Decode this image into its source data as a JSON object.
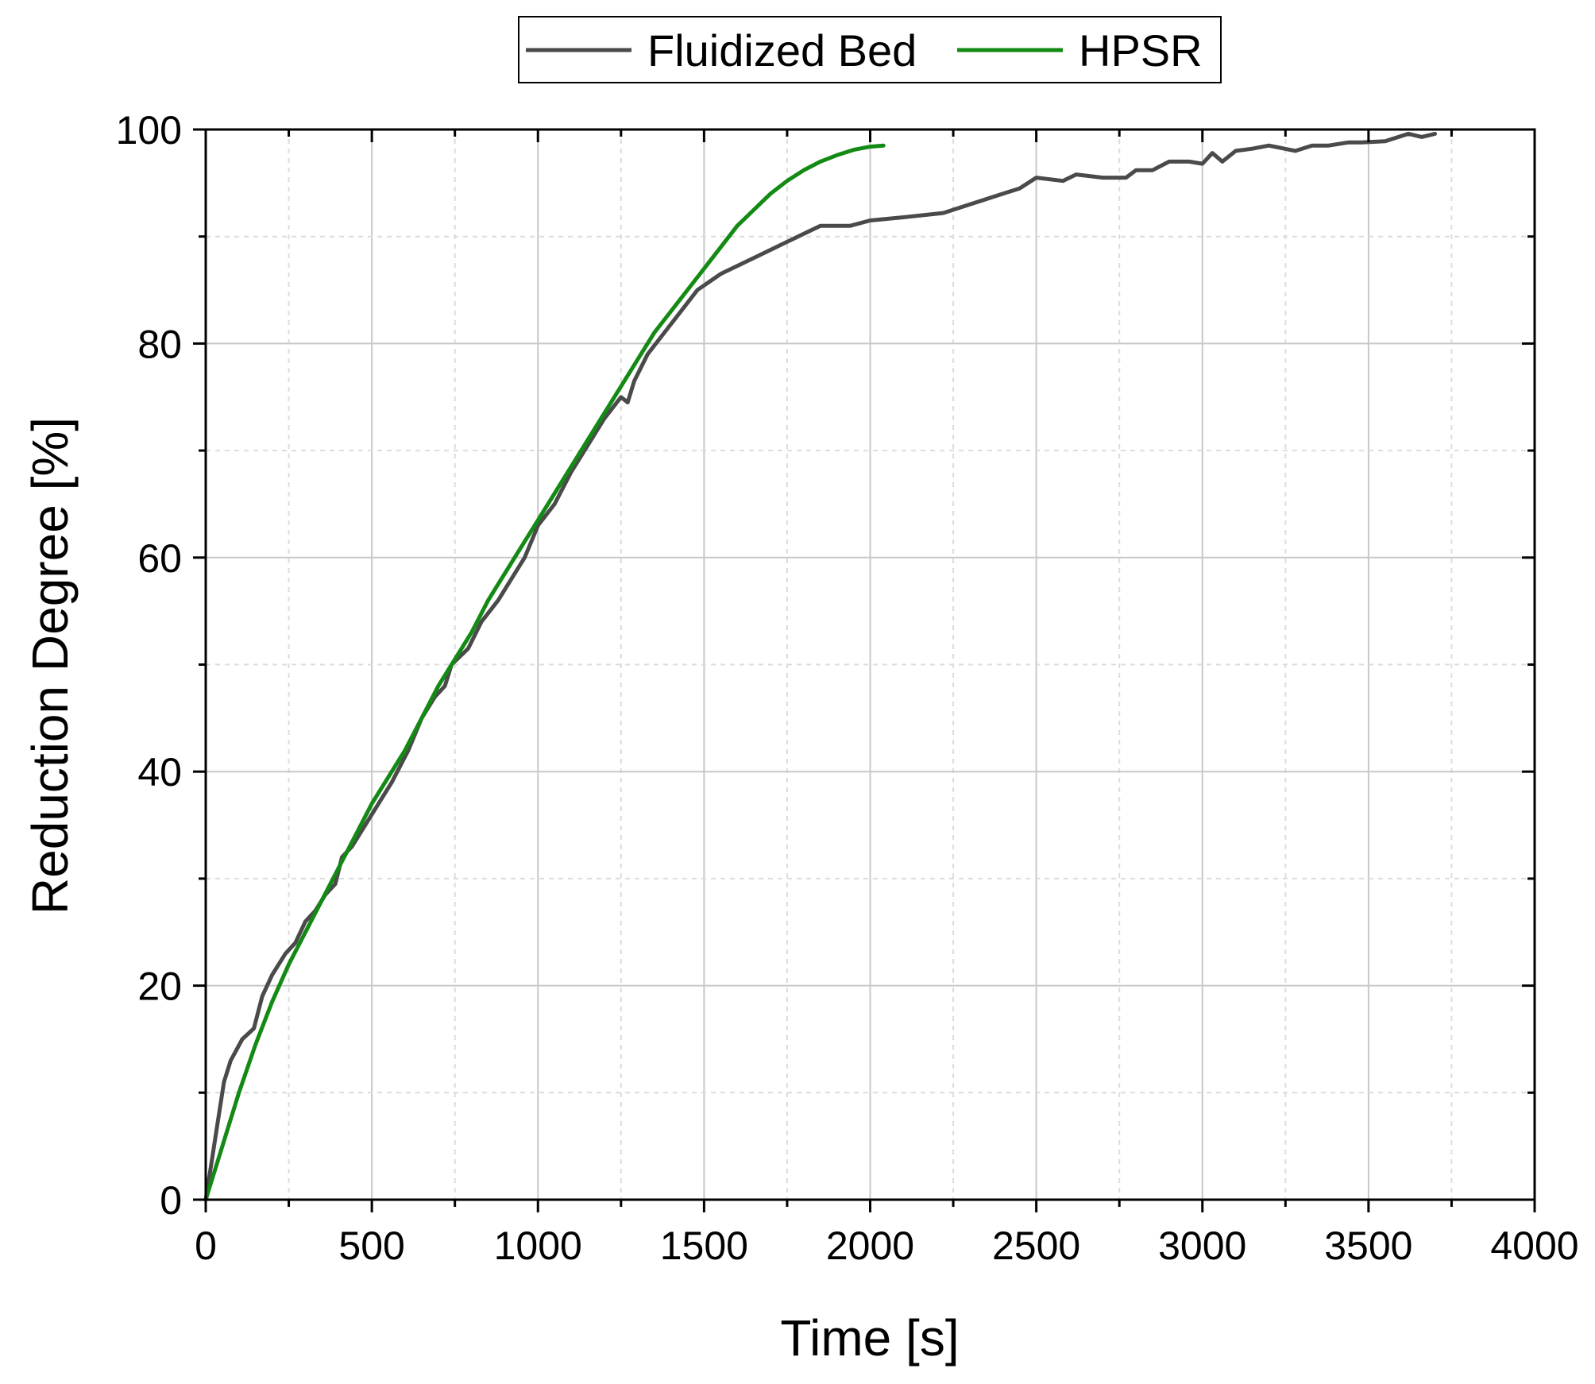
{
  "chart_data": {
    "type": "line",
    "xlabel": "Time [s]",
    "ylabel": "Reduction Degree [%]",
    "xlim": [
      0,
      4000
    ],
    "ylim": [
      0,
      100
    ],
    "xticks": [
      0,
      500,
      1000,
      1500,
      2000,
      2500,
      3000,
      3500,
      4000
    ],
    "yticks": [
      0,
      20,
      40,
      60,
      80,
      100
    ],
    "xtick_labels": [
      "0",
      "500",
      "1000",
      "1500",
      "2000",
      "2500",
      "3000",
      "3500",
      "4000"
    ],
    "ytick_labels": [
      "0",
      "20",
      "40",
      "60",
      "80",
      "100"
    ],
    "grid": true,
    "legend_position": "top",
    "series": [
      {
        "name": "Fluidized Bed",
        "color": "#4a4a4a",
        "x": [
          0,
          15,
          35,
          55,
          75,
          110,
          145,
          170,
          200,
          240,
          270,
          300,
          330,
          360,
          390,
          410,
          440,
          480,
          520,
          560,
          610,
          650,
          690,
          720,
          740,
          790,
          830,
          880,
          920,
          960,
          1000,
          1050,
          1100,
          1150,
          1200,
          1250,
          1270,
          1290,
          1330,
          1380,
          1430,
          1480,
          1550,
          1650,
          1750,
          1850,
          1940,
          2000,
          2100,
          2220,
          2300,
          2400,
          2450,
          2500,
          2580,
          2620,
          2700,
          2770,
          2800,
          2850,
          2900,
          2960,
          3000,
          3030,
          3060,
          3100,
          3150,
          3200,
          3280,
          3330,
          3380,
          3440,
          3480,
          3550,
          3620,
          3660,
          3700
        ],
        "y": [
          0,
          3,
          7,
          11,
          13,
          15,
          16,
          19,
          21,
          23,
          24,
          26,
          27,
          28.5,
          29.5,
          32,
          33,
          35,
          37,
          39,
          42,
          45,
          47,
          48,
          50,
          51.5,
          54,
          56,
          58,
          60,
          63,
          65,
          68,
          70.5,
          73,
          75,
          74.5,
          76.5,
          79,
          81,
          83,
          85,
          86.5,
          88,
          89.5,
          91,
          91,
          91.5,
          91.8,
          92.2,
          93,
          94,
          94.5,
          95.5,
          95.2,
          95.8,
          95.5,
          95.5,
          96.2,
          96.2,
          97,
          97,
          96.8,
          97.8,
          97,
          98,
          98.2,
          98.5,
          98,
          98.5,
          98.5,
          98.8,
          98.8,
          98.9,
          99.6,
          99.3,
          99.6
        ]
      },
      {
        "name": "HPSR",
        "color": "#138a13",
        "x": [
          0,
          50,
          100,
          150,
          200,
          250,
          300,
          350,
          400,
          450,
          500,
          550,
          600,
          650,
          700,
          750,
          800,
          850,
          900,
          950,
          1000,
          1050,
          1100,
          1150,
          1200,
          1250,
          1300,
          1350,
          1400,
          1450,
          1500,
          1550,
          1600,
          1650,
          1700,
          1750,
          1800,
          1850,
          1900,
          1950,
          2000,
          2040
        ],
        "y": [
          0,
          5,
          10,
          14.5,
          18.5,
          22,
          25,
          28,
          31,
          34,
          37,
          39.5,
          42,
          45,
          48,
          50.5,
          53,
          56,
          58.5,
          61,
          63.5,
          66,
          68.5,
          71,
          73.5,
          76,
          78.5,
          81,
          83,
          85,
          87,
          89,
          91,
          92.5,
          94,
          95.2,
          96.2,
          97,
          97.6,
          98.1,
          98.4,
          98.5
        ]
      }
    ]
  }
}
